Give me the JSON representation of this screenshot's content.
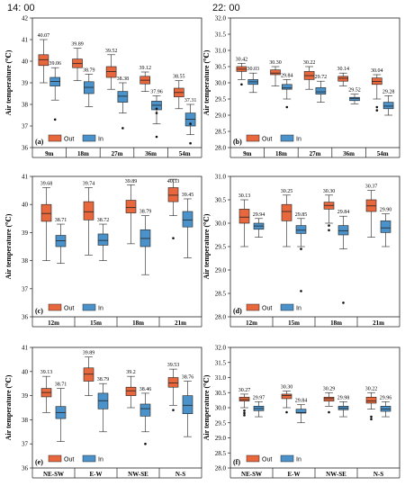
{
  "header": {
    "left_time": "14: 00",
    "right_time": "22: 00"
  },
  "colors": {
    "out": "#e8673c",
    "in": "#4a92c9"
  },
  "chart_data": [
    {
      "type": "box",
      "panel": "(a)",
      "ylabel": "Air temperature (℃)",
      "ylim": [
        36,
        42
      ],
      "yticks": [
        36,
        37,
        38,
        39,
        40,
        41,
        42
      ],
      "categories": [
        "9m",
        "18m",
        "27m",
        "36m",
        "54m"
      ],
      "legend": [
        "Out",
        "In"
      ],
      "legend_position": "bottom-left",
      "series": [
        {
          "name": "Out",
          "boxes": [
            {
              "q1": 39.8,
              "median": 40.07,
              "q3": 40.3,
              "min": 39.0,
              "max": 41.0,
              "mean": 40.07,
              "outliers": []
            },
            {
              "q1": 39.7,
              "median": 39.89,
              "q3": 40.1,
              "min": 39.1,
              "max": 40.6,
              "mean": 39.89,
              "outliers": []
            },
            {
              "q1": 39.25,
              "median": 39.52,
              "q3": 39.75,
              "min": 38.7,
              "max": 40.3,
              "mean": 39.52,
              "outliers": []
            },
            {
              "q1": 38.95,
              "median": 39.12,
              "q3": 39.3,
              "min": 38.6,
              "max": 39.5,
              "mean": 39.12,
              "outliers": []
            },
            {
              "q1": 38.35,
              "median": 38.55,
              "q3": 38.75,
              "min": 37.8,
              "max": 39.1,
              "mean": 38.55,
              "outliers": []
            }
          ]
        },
        {
          "name": "In",
          "boxes": [
            {
              "q1": 38.85,
              "median": 39.06,
              "q3": 39.25,
              "min": 38.2,
              "max": 39.7,
              "mean": 39.06,
              "outliers": [
                37.3
              ]
            },
            {
              "q1": 38.5,
              "median": 38.79,
              "q3": 39.05,
              "min": 37.9,
              "max": 39.4,
              "mean": 38.79,
              "outliers": []
            },
            {
              "q1": 38.1,
              "median": 38.38,
              "q3": 38.6,
              "min": 37.6,
              "max": 39.0,
              "mean": 38.38,
              "outliers": [
                36.9
              ]
            },
            {
              "q1": 37.75,
              "median": 37.96,
              "q3": 38.15,
              "min": 37.1,
              "max": 38.4,
              "mean": 37.96,
              "outliers": [
                37.8,
                37.6,
                36.5
              ]
            },
            {
              "q1": 37.0,
              "median": 37.31,
              "q3": 37.6,
              "min": 36.6,
              "max": 38.0,
              "mean": 37.31,
              "outliers": [
                36.2,
                37.1
              ]
            }
          ]
        }
      ]
    },
    {
      "type": "box",
      "panel": "(b)",
      "ylabel": "Air temperature (℃)",
      "ylim": [
        28.0,
        32.0
      ],
      "yticks": [
        28.0,
        28.5,
        29.0,
        29.5,
        30.0,
        30.5,
        31.0,
        31.5,
        32.0
      ],
      "categories": [
        "9m",
        "18m",
        "27m",
        "36m",
        "54m"
      ],
      "legend": [
        "Out",
        "In"
      ],
      "legend_position": "bottom-left",
      "series": [
        {
          "name": "Out",
          "boxes": [
            {
              "q1": 30.35,
              "median": 30.42,
              "q3": 30.5,
              "min": 30.1,
              "max": 30.6,
              "mean": 30.42,
              "outliers": [
                29.95
              ]
            },
            {
              "q1": 30.25,
              "median": 30.3,
              "q3": 30.4,
              "min": 29.9,
              "max": 30.5,
              "mean": 30.3,
              "outliers": []
            },
            {
              "q1": 30.1,
              "median": 30.22,
              "q3": 30.35,
              "min": 29.8,
              "max": 30.5,
              "mean": 30.22,
              "outliers": []
            },
            {
              "q1": 30.05,
              "median": 30.14,
              "q3": 30.2,
              "min": 29.9,
              "max": 30.3,
              "mean": 30.14,
              "outliers": []
            },
            {
              "q1": 29.95,
              "median": 30.04,
              "q3": 30.15,
              "min": 29.5,
              "max": 30.25,
              "mean": 30.04,
              "outliers": [
                29.25,
                29.15
              ]
            }
          ]
        },
        {
          "name": "In",
          "boxes": [
            {
              "q1": 29.95,
              "median": 30.03,
              "q3": 30.1,
              "min": 29.7,
              "max": 30.3,
              "mean": 30.03,
              "outliers": []
            },
            {
              "q1": 29.8,
              "median": 29.84,
              "q3": 29.95,
              "min": 29.5,
              "max": 30.1,
              "mean": 29.84,
              "outliers": [
                29.25,
                28.3
              ]
            },
            {
              "q1": 29.65,
              "median": 29.72,
              "q3": 29.85,
              "min": 29.4,
              "max": 30.05,
              "mean": 29.72,
              "outliers": []
            },
            {
              "q1": 29.45,
              "median": 29.52,
              "q3": 29.55,
              "min": 29.35,
              "max": 29.65,
              "mean": 29.52,
              "outliers": []
            },
            {
              "q1": 29.2,
              "median": 29.28,
              "q3": 29.4,
              "min": 29.0,
              "max": 29.6,
              "mean": 29.28,
              "outliers": []
            }
          ]
        }
      ]
    },
    {
      "type": "box",
      "panel": "(c)",
      "ylabel": "Air temperature (℃)",
      "ylim": [
        36,
        41
      ],
      "yticks": [
        36,
        37,
        38,
        39,
        40,
        41
      ],
      "categories": [
        "12m",
        "15m",
        "18m",
        "21m"
      ],
      "legend": [
        "Out",
        "In"
      ],
      "legend_position": "bottom-left",
      "series": [
        {
          "name": "Out",
          "boxes": [
            {
              "q1": 39.4,
              "median": 39.68,
              "q3": 40.0,
              "min": 38.0,
              "max": 40.6,
              "mean": 39.68,
              "outliers": []
            },
            {
              "q1": 39.45,
              "median": 39.74,
              "q3": 40.1,
              "min": 38.2,
              "max": 40.6,
              "mean": 39.74,
              "outliers": []
            },
            {
              "q1": 39.7,
              "median": 39.89,
              "q3": 40.15,
              "min": 38.6,
              "max": 40.7,
              "mean": 39.89,
              "outliers": []
            },
            {
              "q1": 40.1,
              "median": 40.33,
              "q3": 40.6,
              "min": 39.6,
              "max": 40.9,
              "mean": 40.33,
              "outliers": [
                38.8
              ]
            }
          ]
        },
        {
          "name": "In",
          "boxes": [
            {
              "q1": 38.5,
              "median": 38.71,
              "q3": 38.9,
              "min": 37.9,
              "max": 39.3,
              "mean": 38.71,
              "outliers": []
            },
            {
              "q1": 38.55,
              "median": 38.72,
              "q3": 38.95,
              "min": 38.0,
              "max": 39.3,
              "mean": 38.72,
              "outliers": []
            },
            {
              "q1": 38.5,
              "median": 38.79,
              "q3": 39.1,
              "min": 37.5,
              "max": 39.6,
              "mean": 38.79,
              "outliers": []
            },
            {
              "q1": 39.2,
              "median": 39.45,
              "q3": 39.75,
              "min": 38.1,
              "max": 40.2,
              "mean": 39.45,
              "outliers": []
            }
          ]
        }
      ]
    },
    {
      "type": "box",
      "panel": "(d)",
      "ylabel": "Air temperature (℃)",
      "ylim": [
        28.0,
        31.0
      ],
      "yticks": [
        28.0,
        28.5,
        29.0,
        29.5,
        30.0,
        30.5,
        31.0
      ],
      "categories": [
        "12m",
        "15m",
        "18m",
        "21m"
      ],
      "legend": [
        "Out",
        "In"
      ],
      "legend_position": "bottom-left",
      "series": [
        {
          "name": "Out",
          "boxes": [
            {
              "q1": 30.0,
              "median": 30.13,
              "q3": 30.3,
              "min": 29.5,
              "max": 30.5,
              "mean": 30.13,
              "outliers": []
            },
            {
              "q1": 30.05,
              "median": 30.25,
              "q3": 30.4,
              "min": 29.5,
              "max": 30.6,
              "mean": 30.25,
              "outliers": []
            },
            {
              "q1": 30.3,
              "median": 30.38,
              "q3": 30.45,
              "min": 30.0,
              "max": 30.6,
              "mean": 30.3,
              "outliers": [
                29.95,
                29.85
              ]
            },
            {
              "q1": 30.25,
              "median": 30.37,
              "q3": 30.5,
              "min": 29.7,
              "max": 30.7,
              "mean": 30.37,
              "outliers": []
            }
          ]
        },
        {
          "name": "In",
          "boxes": [
            {
              "q1": 29.87,
              "median": 29.94,
              "q3": 30.0,
              "min": 29.7,
              "max": 30.1,
              "mean": 29.94,
              "outliers": []
            },
            {
              "q1": 29.78,
              "median": 29.85,
              "q3": 29.95,
              "min": 29.5,
              "max": 30.1,
              "mean": 29.85,
              "outliers": [
                29.45,
                28.55
              ]
            },
            {
              "q1": 29.75,
              "median": 29.84,
              "q3": 29.95,
              "min": 29.45,
              "max": 30.15,
              "mean": 29.84,
              "outliers": [
                28.3
              ]
            },
            {
              "q1": 29.8,
              "median": 29.9,
              "q3": 30.05,
              "min": 29.5,
              "max": 30.2,
              "mean": 29.9,
              "outliers": []
            }
          ]
        }
      ]
    },
    {
      "type": "box",
      "panel": "(e)",
      "ylabel": "Air temperature (℃)",
      "ylim": [
        36,
        41
      ],
      "yticks": [
        36,
        37,
        38,
        39,
        40,
        41
      ],
      "categories": [
        "NE-SW",
        "E-W",
        "NW-SE",
        "N-S"
      ],
      "legend": [
        "Out",
        "In"
      ],
      "legend_position": "bottom-left",
      "series": [
        {
          "name": "Out",
          "boxes": [
            {
              "q1": 38.95,
              "median": 39.13,
              "q3": 39.3,
              "min": 38.3,
              "max": 39.8,
              "mean": 39.13,
              "outliers": []
            },
            {
              "q1": 39.6,
              "median": 39.89,
              "q3": 40.15,
              "min": 39.0,
              "max": 40.6,
              "mean": 39.89,
              "outliers": []
            },
            {
              "q1": 39.0,
              "median": 39.2,
              "q3": 39.35,
              "min": 38.5,
              "max": 39.8,
              "mean": 39.2,
              "outliers": []
            },
            {
              "q1": 39.35,
              "median": 39.53,
              "q3": 39.75,
              "min": 38.6,
              "max": 40.1,
              "mean": 39.53,
              "outliers": [
                38.4
              ]
            }
          ]
        },
        {
          "name": "In",
          "boxes": [
            {
              "q1": 38.05,
              "median": 38.3,
              "q3": 38.55,
              "min": 37.1,
              "max": 39.3,
              "mean": 38.71,
              "outliers": []
            },
            {
              "q1": 38.45,
              "median": 38.79,
              "q3": 39.1,
              "min": 37.5,
              "max": 39.5,
              "mean": 38.79,
              "outliers": []
            },
            {
              "q1": 38.15,
              "median": 38.46,
              "q3": 38.65,
              "min": 37.5,
              "max": 39.1,
              "mean": 38.46,
              "outliers": [
                37.0
              ]
            },
            {
              "q1": 38.25,
              "median": 38.6,
              "q3": 39.0,
              "min": 37.3,
              "max": 39.6,
              "mean": 38.76,
              "outliers": []
            }
          ]
        }
      ]
    },
    {
      "type": "box",
      "panel": "(f)",
      "ylabel": "Air temperature (℃)",
      "ylim": [
        28.0,
        32.0
      ],
      "yticks": [
        28.0,
        28.5,
        29.0,
        29.5,
        30.0,
        30.5,
        31.0,
        31.5,
        32.0
      ],
      "categories": [
        "NE-SW",
        "E-W",
        "NW-SE",
        "N-S"
      ],
      "legend": [
        "Out",
        "In"
      ],
      "legend_position": "bottom-left",
      "series": [
        {
          "name": "Out",
          "boxes": [
            {
              "q1": 30.22,
              "median": 30.27,
              "q3": 30.35,
              "min": 30.0,
              "max": 30.45,
              "mean": 30.27,
              "outliers": [
                29.9,
                29.82,
                29.75
              ]
            },
            {
              "q1": 30.3,
              "median": 30.4,
              "q3": 30.45,
              "min": 30.0,
              "max": 30.55,
              "mean": 30.3,
              "outliers": [
                29.85
              ]
            },
            {
              "q1": 30.22,
              "median": 30.3,
              "q3": 30.35,
              "min": 30.05,
              "max": 30.5,
              "mean": 30.29,
              "outliers": [
                29.85
              ]
            },
            {
              "q1": 30.15,
              "median": 30.22,
              "q3": 30.35,
              "min": 29.95,
              "max": 30.5,
              "mean": 30.22,
              "outliers": [
                29.7,
                29.62
              ]
            }
          ]
        },
        {
          "name": "In",
          "boxes": [
            {
              "q1": 29.9,
              "median": 29.97,
              "q3": 30.05,
              "min": 29.7,
              "max": 30.2,
              "mean": 29.97,
              "outliers": []
            },
            {
              "q1": 29.82,
              "median": 29.84,
              "q3": 29.95,
              "min": 29.5,
              "max": 30.1,
              "mean": 29.84,
              "outliers": []
            },
            {
              "q1": 29.93,
              "median": 29.98,
              "q3": 30.05,
              "min": 29.7,
              "max": 30.2,
              "mean": 29.98,
              "outliers": []
            },
            {
              "q1": 29.88,
              "median": 29.96,
              "q3": 30.05,
              "min": 29.7,
              "max": 30.2,
              "mean": 29.96,
              "outliers": []
            }
          ]
        }
      ]
    }
  ]
}
